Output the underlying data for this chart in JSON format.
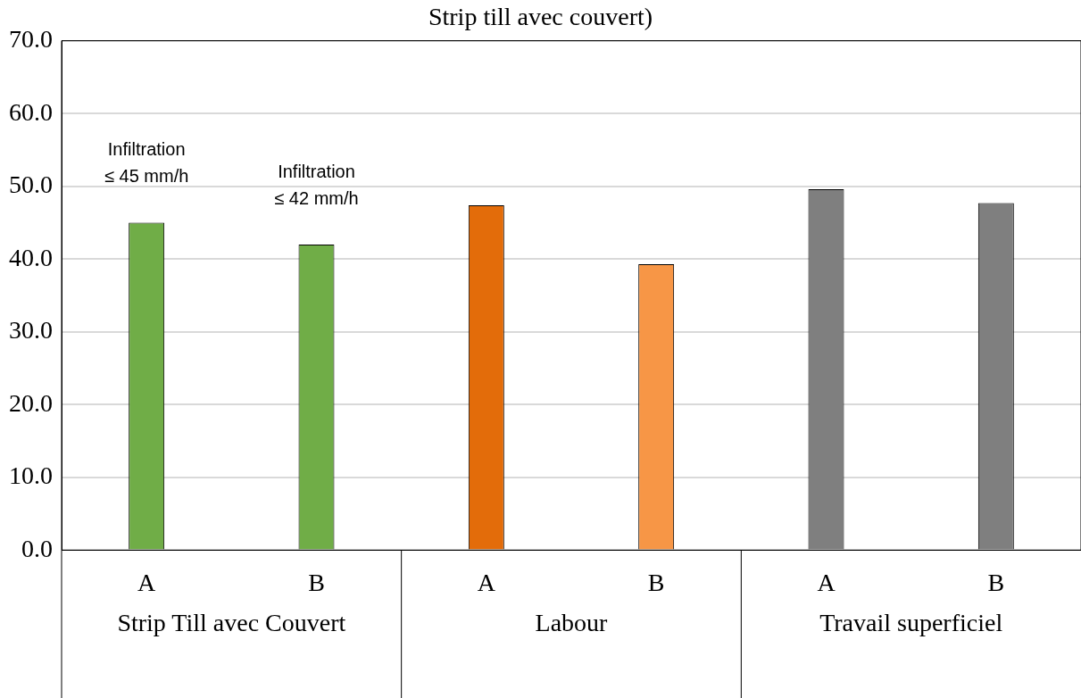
{
  "chart_data": {
    "type": "bar",
    "title": "Strip till avec couvert)",
    "categories": [
      "Strip Till avec Couvert",
      "Labour",
      "Travail superficiel"
    ],
    "series": [
      {
        "name": "A",
        "colors": [
          "#70ad47",
          "#e36c0a",
          "#7f7f7f"
        ],
        "values": [
          45,
          47.4,
          49.6
        ]
      },
      {
        "name": "B",
        "colors": [
          "#70ad47",
          "#f79646",
          "#7f7f7f"
        ],
        "values": [
          42,
          39.3,
          47.7
        ]
      }
    ],
    "ylim": [
      0,
      70
    ],
    "yticks": [
      {
        "value": 0,
        "label": "0.0"
      },
      {
        "value": 10,
        "label": "10.0"
      },
      {
        "value": 20,
        "label": "20.0"
      },
      {
        "value": 30,
        "label": "30.0"
      },
      {
        "value": 40,
        "label": "40.0"
      },
      {
        "value": 50,
        "label": "50.0"
      },
      {
        "value": 60,
        "label": "60.0"
      },
      {
        "value": 70,
        "label": "70.0"
      }
    ],
    "grid": "y",
    "legend": false,
    "annotations": [
      "Infiltration\n≤ 45 mm/h",
      "Infiltration\n≤ 42 mm/h"
    ]
  }
}
